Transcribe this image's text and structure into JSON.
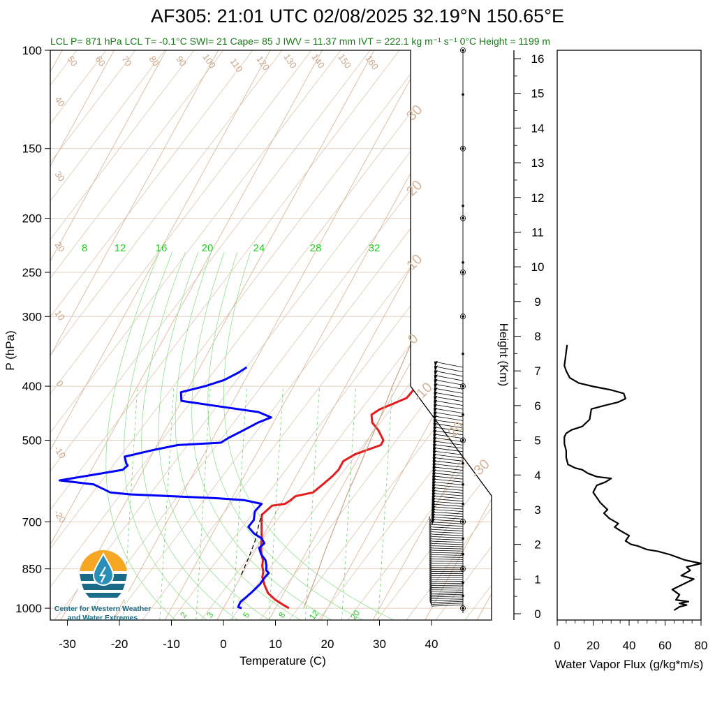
{
  "title": "AF305: 21:01 UTC 02/08/2025  32.19°N 150.65°E",
  "subtitle": "LCL P= 871 hPa  LCL T= -0.1°C  SWI= 21  Cape= 85 J  IWV = 11.37 mm  IVT = 222.1 kg m⁻¹ s⁻¹  0°C Height = 1199 m",
  "logo": {
    "line1": "Center for Western Weather",
    "line2": "and Water Extremes",
    "colors": {
      "sun": "#f5a623",
      "water": "#1a6b85",
      "drop": "#2a8fb8"
    }
  },
  "chart_data": [
    {
      "type": "line",
      "name": "skew-t",
      "xlabel": "Temperature (C)",
      "ylabel": "P (hPa)",
      "x_ticks": [
        -30,
        -20,
        -10,
        0,
        10,
        20,
        30,
        40
      ],
      "y_ticks": [
        100,
        150,
        200,
        250,
        300,
        400,
        500,
        700,
        850,
        1000
      ],
      "xlim": [
        -33.5,
        50
      ],
      "ylim": [
        1050,
        100
      ],
      "y_scale": "log",
      "dry_adiabat_labels": [
        "50",
        "60",
        "70",
        "80",
        "90",
        "100",
        "110",
        "120",
        "130",
        "140",
        "150",
        "160",
        "40",
        "30",
        "20",
        "10",
        "0",
        "-10",
        "-20"
      ],
      "mixing_ratio_labels_top": [
        "8",
        "12",
        "16",
        "20",
        "24",
        "28",
        "32"
      ],
      "mixing_ratio_labels_bottom": [
        "2",
        "3",
        "5",
        "8",
        "12",
        "20"
      ],
      "isotherm_labels": [
        "30",
        "20",
        "10",
        "0",
        "-10",
        "-20",
        "-30"
      ],
      "series": [
        {
          "color": "#e41a1c",
          "points": [
            [
              12.6,
              1000
            ],
            [
              11,
              985
            ],
            [
              9,
              965
            ],
            [
              7,
              940
            ],
            [
              5.5,
              910
            ],
            [
              4.2,
              880
            ],
            [
              3.8,
              860
            ],
            [
              3,
              840
            ],
            [
              2.5,
              820
            ],
            [
              1.6,
              800
            ],
            [
              0.7,
              775
            ],
            [
              0,
              750
            ],
            [
              -0.9,
              725
            ],
            [
              -1.8,
              700
            ],
            [
              -2.5,
              680
            ],
            [
              -1.5,
              655
            ],
            [
              0.8,
              650
            ],
            [
              1.5,
              640
            ],
            [
              2,
              630
            ],
            [
              5,
              620
            ],
            [
              6,
              600
            ],
            [
              7,
              580
            ],
            [
              7.5,
              565
            ],
            [
              7.5,
              545
            ],
            [
              9,
              530
            ],
            [
              11,
              520
            ],
            [
              13,
              510
            ],
            [
              13,
              500
            ],
            [
              11,
              480
            ],
            [
              9,
              465
            ],
            [
              8,
              450
            ],
            [
              9,
              440
            ],
            [
              11,
              430
            ],
            [
              13,
              420
            ],
            [
              13.5,
              405
            ],
            [
              13,
              395
            ],
            [
              13.8,
              380
            ],
            [
              14.5,
              375
            ],
            [
              14,
              365
            ]
          ]
        },
        {
          "color": "#0000ff",
          "points": [
            [
              3.5,
              1000
            ],
            [
              2.7,
              995
            ],
            [
              2.6,
              975
            ],
            [
              3.2,
              955
            ],
            [
              3.8,
              935
            ],
            [
              4.5,
              905
            ],
            [
              4.7,
              880
            ],
            [
              5,
              865
            ],
            [
              4.2,
              855
            ],
            [
              3.8,
              840
            ],
            [
              3,
              820
            ],
            [
              1.5,
              800
            ],
            [
              0.5,
              780
            ],
            [
              1,
              765
            ],
            [
              0,
              750
            ],
            [
              -2,
              735
            ],
            [
              -3.8,
              715
            ],
            [
              -3.5,
              695
            ],
            [
              -4.2,
              670
            ],
            [
              -3.7,
              650
            ],
            [
              -7.5,
              640
            ],
            [
              -13,
              635
            ],
            [
              -30,
              625
            ],
            [
              -34,
              620
            ],
            [
              -38,
              600
            ],
            [
              -45,
              590
            ],
            [
              -34,
              565
            ],
            [
              -33.5,
              555
            ],
            [
              -34,
              550
            ],
            [
              -35,
              535
            ],
            [
              -30,
              520
            ],
            [
              -26,
              510
            ],
            [
              -18,
              505
            ],
            [
              -17,
              495
            ],
            [
              -15,
              480
            ],
            [
              -13,
              465
            ],
            [
              -11,
              455
            ],
            [
              -14,
              445
            ],
            [
              -22,
              435
            ],
            [
              -30,
              425
            ],
            [
              -31,
              410
            ],
            [
              -27,
              400
            ],
            [
              -24,
              390
            ],
            [
              -22,
              378
            ],
            [
              -21,
              370
            ]
          ]
        },
        {
          "color": "#000000",
          "style": "dashed",
          "points": [
            [
              -0.1,
              871
            ],
            [
              -0.5,
              810
            ],
            [
              -1,
              760
            ],
            [
              -2.2,
              700
            ],
            [
              -2.5,
              680
            ]
          ]
        },
        {
          "color": "#c8a488",
          "points": [
            [
              15.4,
              1000
            ],
            [
              14.9,
              930
            ],
            [
              14.3,
              860
            ],
            [
              13.6,
              800
            ],
            [
              13,
              740
            ],
            [
              12.4,
              680
            ],
            [
              11.7,
              620
            ],
            [
              11.2,
              560
            ],
            [
              10.5,
              500
            ],
            [
              9.9,
              450
            ],
            [
              9,
              400
            ],
            [
              8.3,
              350
            ],
            [
              7.7,
              300
            ],
            [
              7,
              250
            ],
            [
              6.4,
              220
            ],
            [
              10,
              200
            ],
            [
              16,
              160
            ],
            [
              22,
              130
            ],
            [
              28,
              110
            ],
            [
              34,
              100
            ]
          ]
        }
      ]
    },
    {
      "type": "line",
      "name": "water-vapor-flux",
      "xlabel": "Water Vapor Flux (g/kg*m/s)",
      "ylabel": "Height (Km)",
      "xlim": [
        0,
        80
      ],
      "ylim": [
        -0.25,
        16.5
      ],
      "x_ticks": [
        0,
        20,
        40,
        60,
        80
      ],
      "y_ticks": [
        0,
        1,
        2,
        3,
        4,
        5,
        6,
        7,
        8,
        9,
        10,
        11,
        12,
        13,
        14,
        15,
        16
      ],
      "series": [
        {
          "color": "#000000",
          "points": [
            [
              65,
              0.1
            ],
            [
              68,
              0.2
            ],
            [
              72,
              0.25
            ],
            [
              68,
              0.3
            ],
            [
              73,
              0.35
            ],
            [
              66,
              0.4
            ],
            [
              68,
              0.55
            ],
            [
              64,
              0.7
            ],
            [
              70,
              0.85
            ],
            [
              76,
              1
            ],
            [
              69,
              1.1
            ],
            [
              74,
              1.25
            ],
            [
              72,
              1.35
            ],
            [
              80,
              1.45
            ],
            [
              71,
              1.55
            ],
            [
              63,
              1.7
            ],
            [
              56,
              1.8
            ],
            [
              50,
              1.85
            ],
            [
              45,
              1.95
            ],
            [
              41,
              2
            ],
            [
              38,
              2.1
            ],
            [
              40,
              2.25
            ],
            [
              35,
              2.4
            ],
            [
              32,
              2.5
            ],
            [
              34,
              2.6
            ],
            [
              29,
              2.75
            ],
            [
              26,
              2.9
            ],
            [
              28,
              3
            ],
            [
              24,
              3.2
            ],
            [
              22,
              3.35
            ],
            [
              20,
              3.5
            ],
            [
              22,
              3.7
            ],
            [
              27,
              3.8
            ],
            [
              30,
              3.9
            ],
            [
              22,
              3.95
            ],
            [
              17,
              4.05
            ],
            [
              14,
              4.15
            ],
            [
              10,
              4.2
            ],
            [
              6,
              4.3
            ],
            [
              5,
              4.5
            ],
            [
              5,
              4.7
            ],
            [
              4,
              4.9
            ],
            [
              4,
              5.1
            ],
            [
              5,
              5.2
            ],
            [
              8,
              5.3
            ],
            [
              14,
              5.4
            ],
            [
              18,
              5.6
            ],
            [
              19,
              5.9
            ],
            [
              26,
              6
            ],
            [
              34,
              6.1
            ],
            [
              38,
              6.2
            ],
            [
              37,
              6.35
            ],
            [
              30,
              6.45
            ],
            [
              20,
              6.55
            ],
            [
              12,
              6.65
            ],
            [
              7,
              6.8
            ],
            [
              5,
              7
            ],
            [
              4,
              7.15
            ],
            [
              4.5,
              7.35
            ],
            [
              5,
              7.55
            ],
            [
              5.5,
              7.75
            ]
          ]
        }
      ]
    }
  ]
}
